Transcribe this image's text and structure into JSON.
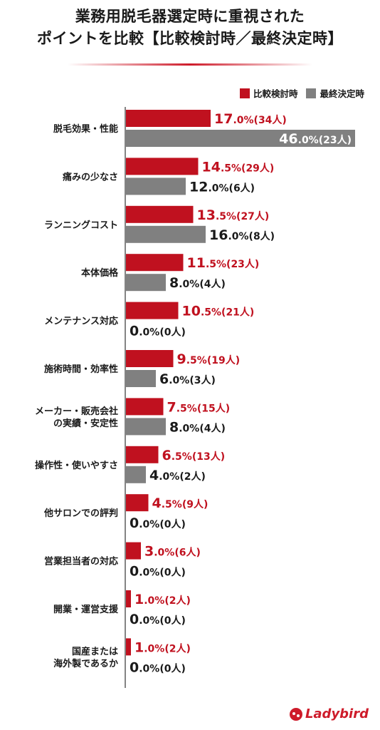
{
  "title_lines": [
    "業務用脱毛器選定時に重視された",
    "ポイントを比較【比較検討時／最終決定時】"
  ],
  "logo_text": "Ladybird",
  "chart_data": {
    "type": "bar",
    "orientation": "horizontal",
    "title": "業務用脱毛器選定時に重視されたポイントを比較【比較検討時／最終決定時】",
    "categories": [
      "脱毛効果・性能",
      "痛みの少なさ",
      "ランニングコスト",
      "本体価格",
      "メンテナンス対応",
      "施術時間・効率性",
      "メーカー・販売会社の実績・安定性",
      "操作性・使いやすさ",
      "他サロンでの評判",
      "営業担当者の対応",
      "開業・運営支援",
      "国産または海外製であるか"
    ],
    "category_label_lines": [
      [
        "脱毛効果・性能"
      ],
      [
        "痛みの少なさ"
      ],
      [
        "ランニングコスト"
      ],
      [
        "本体価格"
      ],
      [
        "メンテナンス対応"
      ],
      [
        "施術時間・効率性"
      ],
      [
        "メーカー・販売会社",
        "の実績・安定性"
      ],
      [
        "操作性・使いやすさ"
      ],
      [
        "他サロンでの評判"
      ],
      [
        "営業担当者の対応"
      ],
      [
        "開業・運営支援"
      ],
      [
        "国産または",
        "海外製であるか"
      ]
    ],
    "series": [
      {
        "name": "比較検討時",
        "color": "#c0111f",
        "values": [
          17.0,
          14.5,
          13.5,
          11.5,
          10.5,
          9.5,
          7.5,
          6.5,
          4.5,
          3.0,
          1.0,
          1.0
        ],
        "counts": [
          34,
          29,
          27,
          23,
          21,
          19,
          15,
          13,
          9,
          6,
          2,
          2
        ]
      },
      {
        "name": "最終決定時",
        "color": "#808080",
        "values": [
          46.0,
          12.0,
          16.0,
          8.0,
          0.0,
          6.0,
          8.0,
          4.0,
          0.0,
          0.0,
          0.0,
          0.0
        ],
        "counts": [
          23,
          6,
          8,
          4,
          0,
          3,
          4,
          2,
          0,
          0,
          0,
          0
        ]
      }
    ],
    "unit": "%",
    "count_unit": "人",
    "xlim": [
      0,
      46
    ],
    "legend": "top-right",
    "grid": false
  }
}
